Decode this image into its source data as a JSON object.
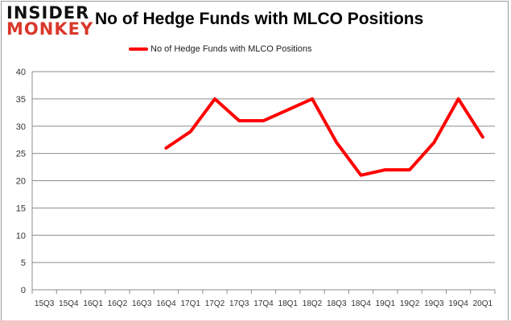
{
  "logo": {
    "line1": "INSIDER",
    "line2": "MONKEY"
  },
  "chart_data": {
    "type": "line",
    "title": "No of Hedge Funds with MLCO Positions",
    "categories": [
      "15Q3",
      "15Q4",
      "16Q1",
      "16Q2",
      "16Q3",
      "16Q4",
      "17Q1",
      "17Q2",
      "17Q3",
      "17Q4",
      "18Q1",
      "18Q2",
      "18Q3",
      "18Q4",
      "19Q1",
      "19Q2",
      "19Q3",
      "19Q4",
      "20Q1"
    ],
    "series": [
      {
        "name": "No of Hedge Funds with MLCO Positions",
        "color": "#ff0000",
        "values": [
          null,
          null,
          null,
          null,
          null,
          26,
          29,
          35,
          31,
          31,
          33,
          35,
          27,
          21,
          22,
          22,
          27,
          35,
          28
        ]
      }
    ],
    "yticks": [
      0,
      5,
      10,
      15,
      20,
      25,
      30,
      35,
      40
    ],
    "ylim": [
      0,
      40
    ],
    "grid": true,
    "legend": "top-center"
  }
}
